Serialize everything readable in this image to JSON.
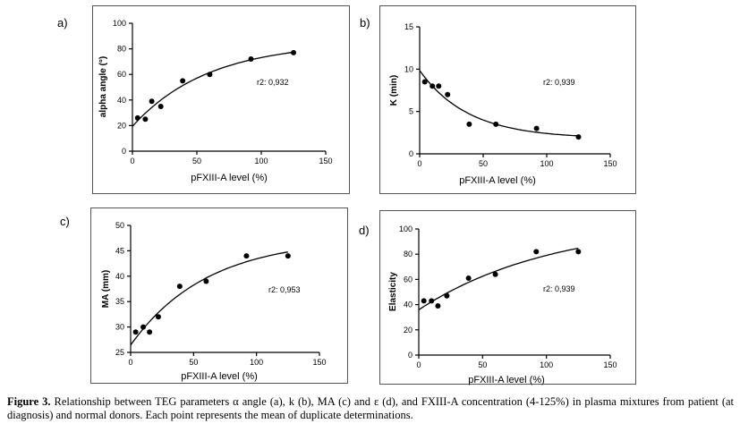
{
  "caption": {
    "label": "Figure 3.",
    "text": "Relationship between TEG parameters α angle (a), k (b), MA (c) and ε (d), and FXIII-A concentration (4-125%) in plasma mixtures from patient (at diagnosis) and normal donors. Each point represents the mean of duplicate determinations."
  },
  "chart_data": [
    {
      "panel": "a)",
      "type": "scatter",
      "xlabel": "pFXIII-A level (%)",
      "ylabel": "alpha angle (°)",
      "xlim": [
        0,
        150
      ],
      "ylim": [
        0,
        100
      ],
      "xticks": [
        0,
        50,
        100,
        150
      ],
      "yticks": [
        0,
        20,
        40,
        60,
        80,
        100
      ],
      "annotation": "r2: 0,932",
      "points": [
        [
          4,
          26
        ],
        [
          10,
          25
        ],
        [
          15,
          39
        ],
        [
          22,
          35
        ],
        [
          39,
          55
        ],
        [
          60,
          60
        ],
        [
          92,
          72
        ],
        [
          125,
          77
        ]
      ],
      "fit_curve": true
    },
    {
      "panel": "b)",
      "type": "scatter",
      "xlabel": "pFXIII-A level (%)",
      "ylabel": "K (min)",
      "xlim": [
        0,
        150
      ],
      "ylim": [
        0,
        15
      ],
      "xticks": [
        0,
        50,
        100,
        150
      ],
      "yticks": [
        0,
        5,
        10,
        15
      ],
      "annotation": "r2: 0,939",
      "points": [
        [
          4,
          8.5
        ],
        [
          10,
          8
        ],
        [
          15,
          8
        ],
        [
          22,
          7
        ],
        [
          39,
          3.5
        ],
        [
          60,
          3.5
        ],
        [
          92,
          3
        ],
        [
          125,
          2
        ]
      ],
      "fit_curve": true
    },
    {
      "panel": "c)",
      "type": "scatter",
      "xlabel": "pFXIII-A level (%)",
      "ylabel": "MA (mm)",
      "xlim": [
        0,
        150
      ],
      "ylim": [
        25,
        50
      ],
      "xticks": [
        0,
        50,
        100,
        150
      ],
      "yticks": [
        25,
        30,
        35,
        40,
        45,
        50
      ],
      "annotation": "r2: 0,953",
      "points": [
        [
          4,
          29
        ],
        [
          10,
          30
        ],
        [
          15,
          29
        ],
        [
          22,
          32
        ],
        [
          39,
          38
        ],
        [
          60,
          39
        ],
        [
          92,
          44
        ],
        [
          125,
          44
        ]
      ],
      "fit_curve": true
    },
    {
      "panel": "d)",
      "type": "scatter",
      "xlabel": "pFXIII-A level (%)",
      "ylabel": "Elasticity",
      "xlim": [
        0,
        150
      ],
      "ylim": [
        0,
        100
      ],
      "xticks": [
        0,
        50,
        100,
        150
      ],
      "yticks": [
        0,
        20,
        40,
        60,
        80,
        100
      ],
      "annotation": "r2: 0,939",
      "points": [
        [
          4,
          43
        ],
        [
          10,
          43
        ],
        [
          15,
          39
        ],
        [
          22,
          47
        ],
        [
          39,
          61
        ],
        [
          60,
          64
        ],
        [
          92,
          82
        ],
        [
          125,
          82
        ]
      ],
      "fit_curve": true
    }
  ]
}
